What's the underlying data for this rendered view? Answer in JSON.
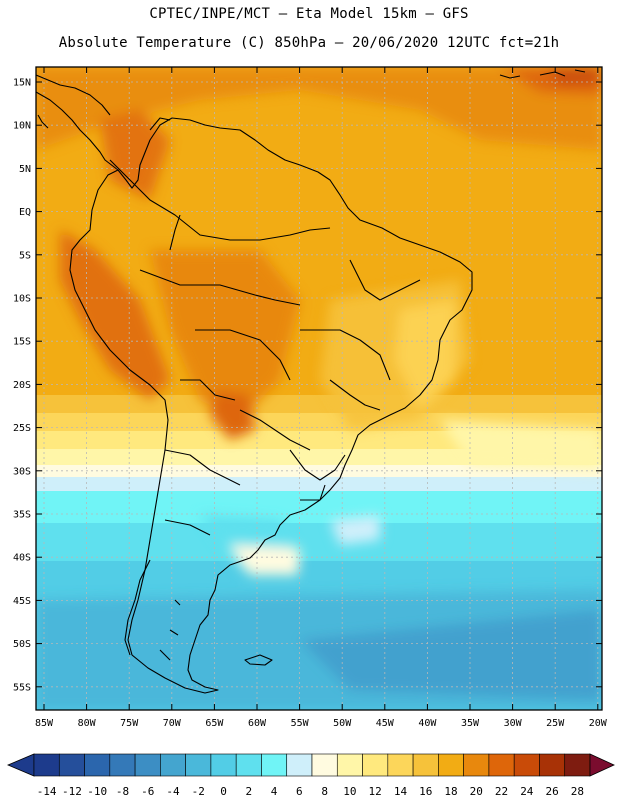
{
  "header": {
    "line1": "CPTEC/INPE/MCT –  Eta Model 15km – GFS",
    "line2": "Absolute Temperature (C) 850hPa – 20/06/2020 12UTC fct=21h"
  },
  "map": {
    "lat_labels": [
      "15N",
      "10N",
      "5N",
      "EQ",
      "5S",
      "10S",
      "15S",
      "20S",
      "25S",
      "30S",
      "35S",
      "40S",
      "45S",
      "50S",
      "55S"
    ],
    "lon_labels": [
      "85W",
      "80W",
      "75W",
      "70W",
      "65W",
      "60W",
      "55W",
      "50W",
      "45W",
      "40W",
      "35W",
      "30W",
      "25W",
      "20W"
    ]
  },
  "colorbar": {
    "labels": [
      "-14",
      "-12",
      "-10",
      "-8",
      "-6",
      "-4",
      "-2",
      "0",
      "2",
      "4",
      "6",
      "8",
      "10",
      "12",
      "14",
      "16",
      "18",
      "20",
      "22",
      "24",
      "26",
      "28"
    ],
    "colors": [
      "#1d3b8c",
      "#254f9b",
      "#2b66ad",
      "#3479b8",
      "#3c8ec4",
      "#44a5cf",
      "#4ab8da",
      "#52cde6",
      "#5fe0ee",
      "#70f4f6",
      "#cfeffa",
      "#fffbe0",
      "#fff6a8",
      "#ffe97e",
      "#fcd65a",
      "#f6c23a",
      "#f2ac14",
      "#e8880d",
      "#de660a",
      "#c94b08",
      "#a83206",
      "#7e1c10"
    ],
    "min_color": "#1d3b8c",
    "max_color": "#7a0c2e"
  }
}
